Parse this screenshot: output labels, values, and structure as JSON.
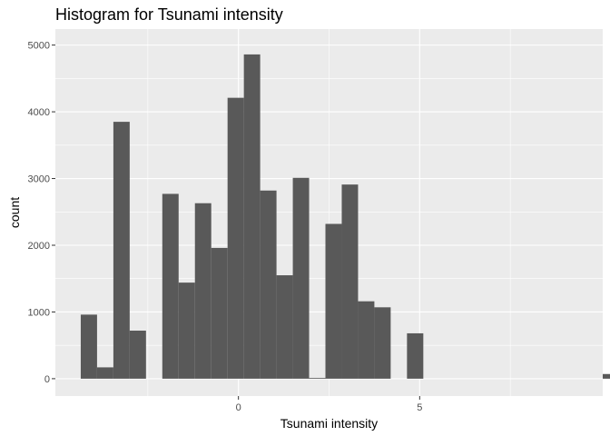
{
  "chart_data": {
    "type": "bar",
    "title": "Histogram for Tsunami intensity",
    "xlabel": "Tsunami intensity",
    "ylabel": "count",
    "xlim": [
      -5.05,
      10.05
    ],
    "ylim": [
      -260,
      5240
    ],
    "x_ticks": [
      0,
      5
    ],
    "y_ticks": [
      0,
      1000,
      2000,
      3000,
      4000,
      5000
    ],
    "bin_width": 0.45,
    "bin_start": -4.35,
    "counts": [
      960,
      170,
      3850,
      720,
      0,
      2770,
      1440,
      2630,
      1960,
      4210,
      4860,
      2820,
      1550,
      3010,
      10,
      2320,
      2910,
      1160,
      1070,
      0,
      680,
      0,
      0,
      0,
      0,
      0,
      0,
      0,
      0,
      0,
      0,
      0,
      70
    ],
    "grid": true,
    "bar_color": "#595959",
    "panel_color": "#ebebeb",
    "grid_color": "#ffffff"
  }
}
